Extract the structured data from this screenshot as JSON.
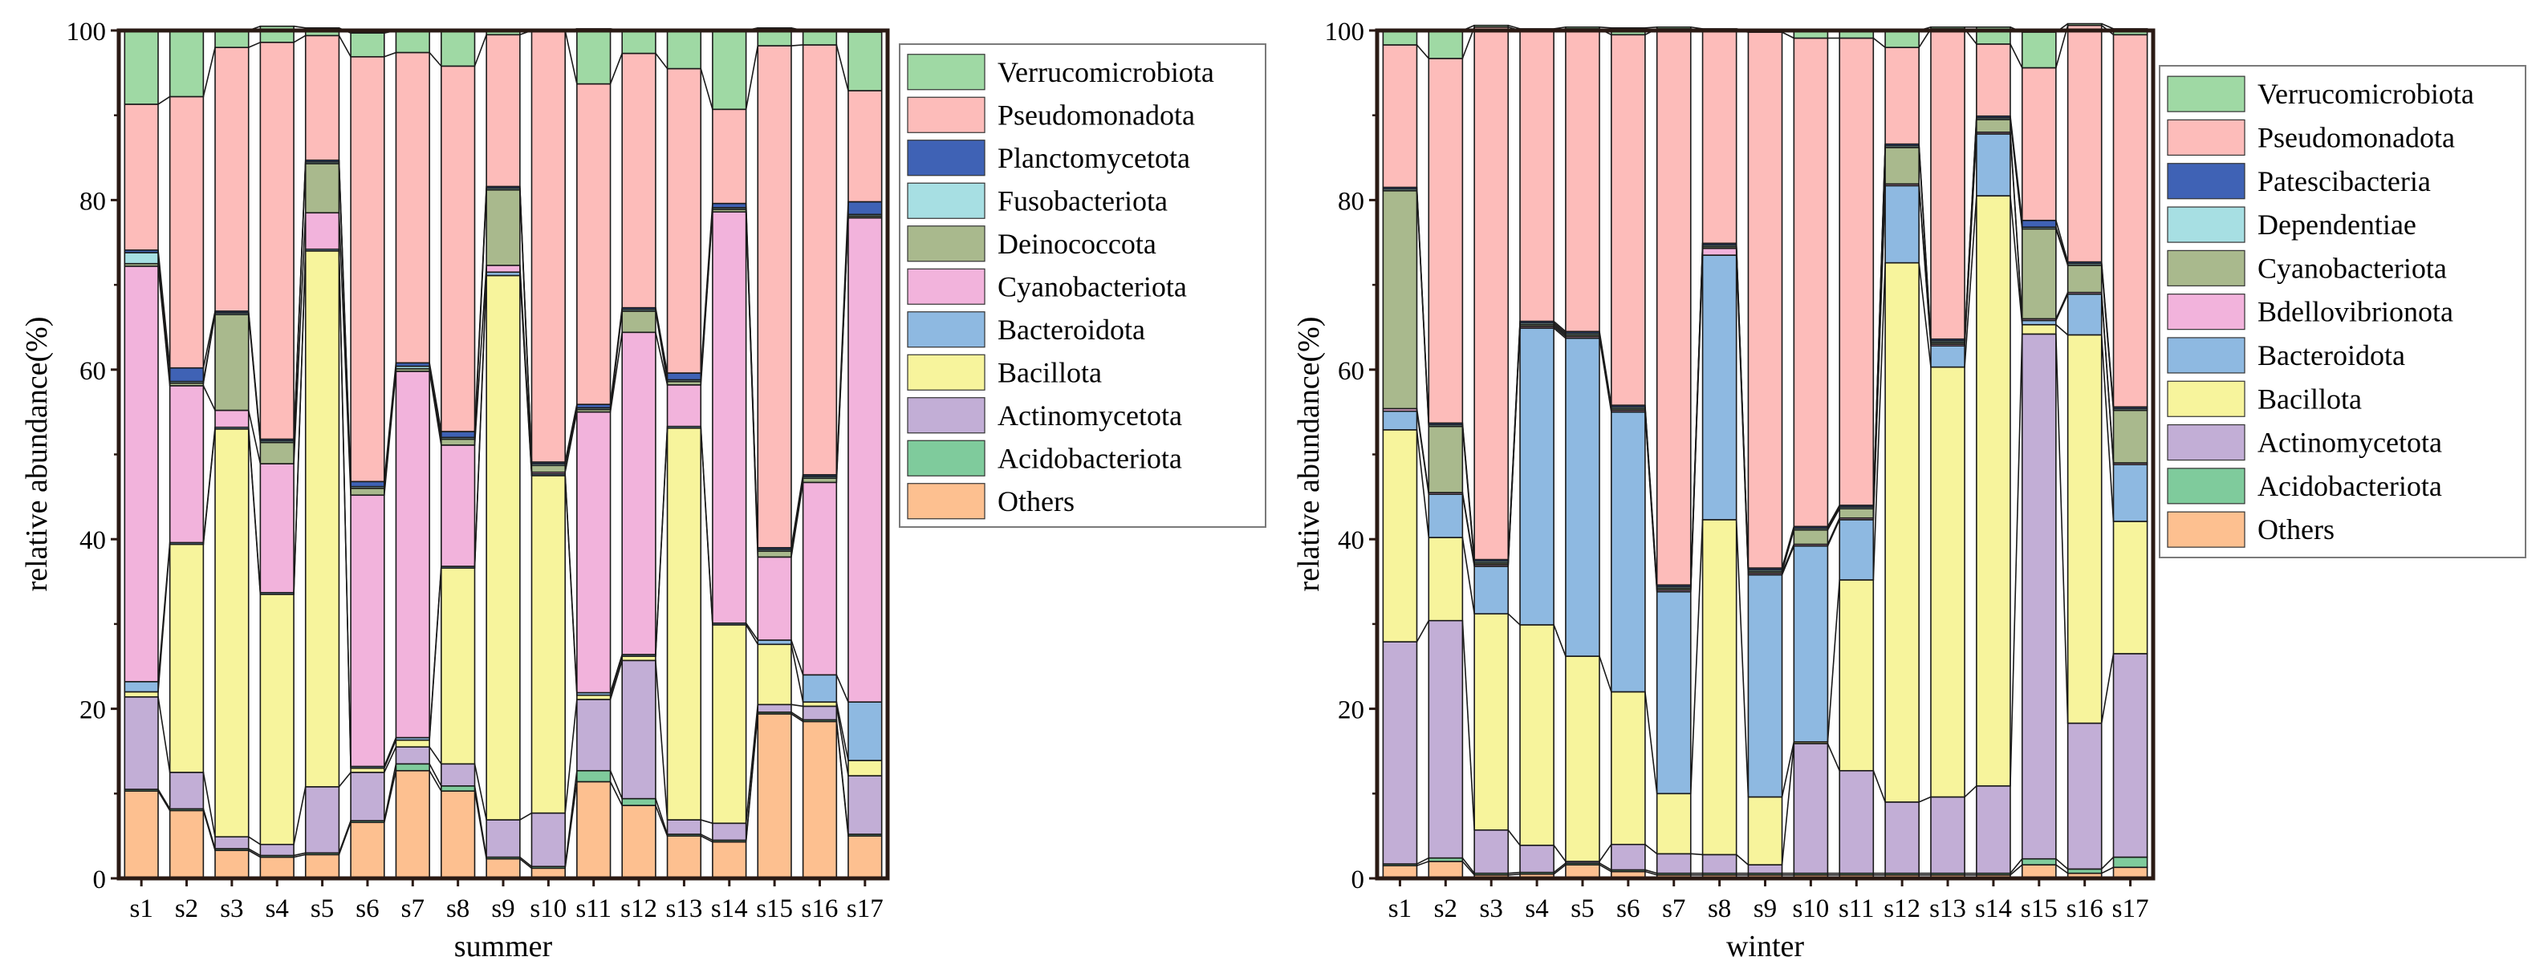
{
  "figure_type": "stacked-bar-pair",
  "chart_data": [
    {
      "type": "bar",
      "stacked": true,
      "id": "summer",
      "xlabel": "summer",
      "ylabel": "relative abundance(%)",
      "ylim": [
        0,
        100
      ],
      "yticks": [
        "0",
        "20",
        "40",
        "60",
        "80",
        "100"
      ],
      "legend_placement": "right",
      "categories": [
        "s1",
        "s2",
        "s3",
        "s4",
        "s5",
        "s6",
        "s7",
        "s8",
        "s9",
        "s10",
        "s11",
        "s12",
        "s13",
        "s14",
        "s15",
        "s16",
        "s17"
      ],
      "series": [
        {
          "name": "Others",
          "color": "#FDC090",
          "values": [
            10.3,
            8.0,
            3.3,
            2.5,
            2.8,
            6.6,
            12.7,
            10.3,
            2.3,
            1.2,
            11.4,
            8.6,
            5.0,
            4.3,
            19.4,
            18.5,
            5.0
          ]
        },
        {
          "name": "Acidobacteriota",
          "color": "#7FCB9C",
          "values": [
            0.2,
            0.2,
            0.2,
            0.2,
            0.2,
            0.2,
            0.8,
            0.6,
            0.2,
            0.2,
            1.3,
            0.8,
            0.2,
            0.2,
            0.2,
            0.2,
            0.2
          ]
        },
        {
          "name": "Actinomycetota",
          "color": "#C2AED6",
          "values": [
            10.9,
            4.3,
            1.4,
            1.3,
            7.8,
            5.7,
            2.0,
            2.6,
            4.4,
            6.3,
            8.4,
            16.3,
            1.7,
            2.0,
            0.9,
            1.6,
            6.9
          ]
        },
        {
          "name": "Bacillota",
          "color": "#F7F49C",
          "values": [
            0.6,
            26.9,
            48.1,
            29.5,
            63.2,
            0.5,
            0.8,
            23.1,
            64.2,
            39.8,
            0.5,
            0.5,
            46.2,
            23.4,
            7.1,
            0.5,
            1.8
          ]
        },
        {
          "name": "Bacteroidota",
          "color": "#8EB9E1",
          "values": [
            1.2,
            0.2,
            0.2,
            0.2,
            0.2,
            0.2,
            0.3,
            0.2,
            0.4,
            0.2,
            0.3,
            0.2,
            0.2,
            0.2,
            0.5,
            3.2,
            6.9
          ]
        },
        {
          "name": "Cyanobacteriota",
          "color": "#F2B3DC",
          "values": [
            49.0,
            18.5,
            2.0,
            15.2,
            4.3,
            32.0,
            43.2,
            14.3,
            0.8,
            0.2,
            33.1,
            38.0,
            4.9,
            48.5,
            9.8,
            22.7,
            57.1
          ]
        },
        {
          "name": "Deinococcota",
          "color": "#A9B98D",
          "values": [
            0.3,
            0.3,
            11.3,
            2.5,
            5.8,
            0.8,
            0.3,
            0.7,
            8.9,
            0.8,
            0.3,
            2.5,
            0.4,
            0.3,
            0.7,
            0.5,
            0.2
          ]
        },
        {
          "name": "Fusobacteriota",
          "color": "#A7DFE3",
          "values": [
            1.3,
            0.2,
            0.2,
            0.2,
            0.2,
            0.2,
            0.3,
            0.2,
            0.2,
            0.2,
            0.2,
            0.2,
            0.2,
            0.2,
            0.2,
            0.2,
            0.2
          ]
        },
        {
          "name": "Planctomycetota",
          "color": "#3F62B5",
          "values": [
            0.3,
            1.6,
            0.2,
            0.2,
            0.2,
            0.6,
            0.4,
            0.7,
            0.2,
            0.2,
            0.4,
            0.2,
            0.8,
            0.5,
            0.2,
            0.2,
            1.5
          ]
        },
        {
          "name": "Pseudomonadota",
          "color": "#FDBCBA",
          "values": [
            17.2,
            32.0,
            31.1,
            46.8,
            14.7,
            50.1,
            36.6,
            43.1,
            17.9,
            50.9,
            37.8,
            30.0,
            35.9,
            11.1,
            59.2,
            50.7,
            13.1
          ]
        },
        {
          "name": "Verrucomicrobiota",
          "color": "#9FD9A4",
          "values": [
            8.7,
            7.8,
            2.0,
            1.9,
            0.9,
            2.8,
            2.6,
            4.2,
            0.5,
            0.0,
            6.5,
            2.7,
            4.5,
            9.3,
            2.1,
            1.7,
            6.9
          ]
        }
      ]
    },
    {
      "type": "bar",
      "stacked": true,
      "id": "winter",
      "xlabel": "winter",
      "ylabel": "relative abundance(%)",
      "ylim": [
        0,
        100
      ],
      "yticks": [
        "0",
        "20",
        "40",
        "60",
        "80",
        "100"
      ],
      "legend_placement": "right",
      "categories": [
        "s1",
        "s2",
        "s3",
        "s4",
        "s5",
        "s6",
        "s7",
        "s8",
        "s9",
        "s10",
        "s11",
        "s12",
        "s13",
        "s14",
        "s15",
        "s16",
        "s17"
      ],
      "series": [
        {
          "name": "Others",
          "color": "#FDC090",
          "values": [
            1.5,
            2.0,
            0.4,
            0.5,
            1.6,
            0.8,
            0.4,
            0.4,
            0.4,
            0.4,
            0.4,
            0.4,
            0.4,
            0.4,
            1.6,
            0.6,
            1.3
          ]
        },
        {
          "name": "Acidobacteriota",
          "color": "#7FCB9C",
          "values": [
            0.2,
            0.4,
            0.2,
            0.2,
            0.2,
            0.2,
            0.2,
            0.2,
            0.2,
            0.2,
            0.2,
            0.2,
            0.2,
            0.2,
            0.7,
            0.5,
            1.2
          ]
        },
        {
          "name": "Actinomycetota",
          "color": "#C2AED6",
          "values": [
            26.2,
            28.0,
            5.1,
            3.2,
            0.2,
            3.0,
            2.3,
            2.2,
            1.0,
            15.3,
            12.1,
            8.4,
            9.0,
            10.3,
            61.9,
            17.2,
            24.0
          ]
        },
        {
          "name": "Bacillota",
          "color": "#F7F49C",
          "values": [
            25.0,
            9.8,
            25.5,
            26.0,
            24.2,
            18.0,
            7.1,
            39.5,
            8.0,
            0.2,
            22.5,
            63.6,
            50.7,
            69.6,
            1.1,
            45.8,
            15.6
          ]
        },
        {
          "name": "Bacteroidota",
          "color": "#8EB9E1",
          "values": [
            2.2,
            5.1,
            5.6,
            35.0,
            37.5,
            33.0,
            23.8,
            31.2,
            26.2,
            23.1,
            7.1,
            9.1,
            2.5,
            7.3,
            0.5,
            4.8,
            6.7
          ]
        },
        {
          "name": "Bdellovibrionota",
          "color": "#F2B3DC",
          "values": [
            0.3,
            0.2,
            0.2,
            0.2,
            0.2,
            0.2,
            0.2,
            0.8,
            0.2,
            0.2,
            0.2,
            0.2,
            0.2,
            0.2,
            0.2,
            0.2,
            0.2
          ]
        },
        {
          "name": "Cyanobacteriota",
          "color": "#A9B98D",
          "values": [
            25.7,
            7.8,
            0.2,
            0.2,
            0.2,
            0.2,
            0.2,
            0.2,
            0.2,
            1.7,
            1.1,
            4.3,
            0.2,
            1.5,
            10.6,
            3.2,
            6.2
          ]
        },
        {
          "name": "Dependentiae",
          "color": "#A7DFE3",
          "values": [
            0.2,
            0.2,
            0.2,
            0.2,
            0.2,
            0.2,
            0.2,
            0.2,
            0.2,
            0.2,
            0.2,
            0.2,
            0.2,
            0.2,
            0.2,
            0.2,
            0.2
          ]
        },
        {
          "name": "Patescibacteria",
          "color": "#3F62B5",
          "values": [
            0.2,
            0.2,
            0.2,
            0.2,
            0.2,
            0.2,
            0.2,
            0.2,
            0.2,
            0.2,
            0.2,
            0.2,
            0.2,
            0.2,
            0.8,
            0.2,
            0.2
          ]
        },
        {
          "name": "Pseudomonadota",
          "color": "#FDBCBA",
          "values": [
            16.8,
            43.0,
            62.8,
            34.3,
            35.7,
            43.7,
            65.6,
            25.1,
            63.2,
            57.6,
            55.1,
            11.4,
            36.6,
            8.5,
            18.0,
            27.9,
            43.9
          ]
        },
        {
          "name": "Verrucomicrobiota",
          "color": "#9FD9A4",
          "values": [
            1.7,
            3.3,
            0.2,
            0.2,
            0.2,
            0.8,
            0.2,
            0.2,
            0.2,
            1.0,
            1.0,
            2.0,
            0.2,
            2.0,
            4.2,
            0.2,
            0.7
          ]
        }
      ]
    }
  ]
}
